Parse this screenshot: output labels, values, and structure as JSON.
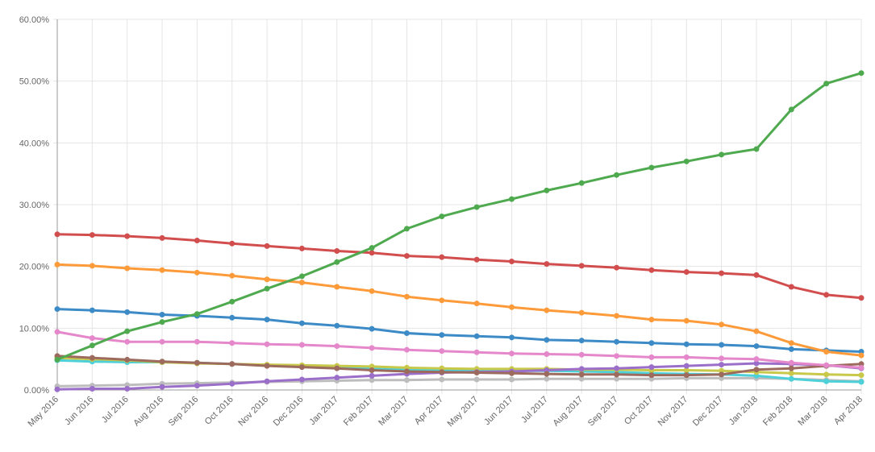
{
  "chart_data": {
    "type": "line",
    "title": "",
    "xlabel": "",
    "ylabel": "",
    "ylim": [
      0,
      60
    ],
    "y_ticks": [
      "0.00%",
      "10.00%",
      "20.00%",
      "30.00%",
      "40.00%",
      "50.00%",
      "60.00%"
    ],
    "grid": true,
    "categories": [
      "May 2016",
      "Jun 2016",
      "Jul 2016",
      "Aug 2016",
      "Sep 2016",
      "Oct 2016",
      "Nov 2016",
      "Dec 2016",
      "Jan 2017",
      "Feb 2017",
      "Mar 2017",
      "Apr 2017",
      "May 2017",
      "Jun 2017",
      "Jul 2017",
      "Aug 2017",
      "Sep 2017",
      "Oct 2017",
      "Nov 2017",
      "Dec 2017",
      "Jan 2018",
      "Feb 2018",
      "Mar 2018",
      "Apr 2018"
    ],
    "series": [
      {
        "color": "#bdbdbd",
        "values": [
          0.6,
          0.7,
          0.8,
          1.0,
          1.1,
          1.2,
          1.3,
          1.4,
          1.5,
          1.6,
          1.6,
          1.7,
          1.7,
          1.7,
          1.8,
          1.8,
          1.8,
          1.8,
          1.9,
          1.9,
          1.9,
          1.8,
          1.6,
          1.4
        ]
      },
      {
        "color": "#4dd0d8",
        "values": [
          4.8,
          4.6,
          4.5,
          4.5,
          4.4,
          4.2,
          4.0,
          3.8,
          3.7,
          3.5,
          3.3,
          3.2,
          3.2,
          3.1,
          3.1,
          3.0,
          2.9,
          2.7,
          2.6,
          2.5,
          2.3,
          1.8,
          1.4,
          1.3
        ]
      },
      {
        "color": "#c8c84a",
        "values": [
          5.2,
          5.0,
          4.8,
          4.5,
          4.3,
          4.2,
          4.1,
          4.0,
          3.9,
          3.8,
          3.6,
          3.5,
          3.4,
          3.4,
          3.4,
          3.3,
          3.3,
          3.2,
          3.2,
          3.1,
          2.9,
          2.7,
          2.5,
          2.4
        ]
      },
      {
        "color": "#9b6fc9",
        "values": [
          0.1,
          0.2,
          0.2,
          0.5,
          0.7,
          1.0,
          1.4,
          1.7,
          2.0,
          2.3,
          2.6,
          2.8,
          2.9,
          3.0,
          3.2,
          3.4,
          3.5,
          3.7,
          3.9,
          4.1,
          4.3,
          4.2,
          4.0,
          3.5
        ]
      },
      {
        "color": "#9c6b5e",
        "values": [
          5.5,
          5.2,
          4.9,
          4.6,
          4.4,
          4.2,
          3.9,
          3.7,
          3.5,
          3.2,
          3.0,
          2.9,
          2.8,
          2.7,
          2.6,
          2.5,
          2.5,
          2.4,
          2.4,
          2.5,
          3.3,
          3.5,
          3.9,
          4.2
        ]
      },
      {
        "color": "#e588cb",
        "values": [
          9.4,
          8.4,
          7.8,
          7.8,
          7.8,
          7.6,
          7.4,
          7.3,
          7.1,
          6.8,
          6.5,
          6.3,
          6.1,
          5.9,
          5.8,
          5.7,
          5.5,
          5.3,
          5.3,
          5.1,
          5.0,
          4.4,
          4.0,
          3.6
        ]
      },
      {
        "color": "#3c8bc6",
        "values": [
          13.1,
          12.9,
          12.6,
          12.2,
          12.0,
          11.7,
          11.4,
          10.8,
          10.4,
          9.9,
          9.2,
          8.9,
          8.7,
          8.5,
          8.1,
          8.0,
          7.8,
          7.6,
          7.4,
          7.3,
          7.1,
          6.6,
          6.4,
          6.2
        ]
      },
      {
        "color": "#fd9b3a",
        "values": [
          20.3,
          20.1,
          19.7,
          19.4,
          19.0,
          18.5,
          17.9,
          17.4,
          16.7,
          16.0,
          15.1,
          14.5,
          14.0,
          13.4,
          12.9,
          12.5,
          12.0,
          11.4,
          11.2,
          10.6,
          9.5,
          7.6,
          6.2,
          5.6
        ]
      },
      {
        "color": "#d24e4e",
        "values": [
          25.2,
          25.1,
          24.9,
          24.6,
          24.2,
          23.7,
          23.3,
          22.9,
          22.5,
          22.2,
          21.7,
          21.5,
          21.1,
          20.8,
          20.4,
          20.1,
          19.8,
          19.4,
          19.1,
          18.9,
          18.6,
          16.7,
          15.4,
          14.9
        ]
      },
      {
        "color": "#4faa4f",
        "values": [
          4.9,
          7.2,
          9.5,
          11.0,
          12.3,
          14.3,
          16.4,
          18.4,
          20.7,
          23.0,
          26.1,
          28.1,
          29.6,
          30.9,
          32.3,
          33.5,
          34.8,
          36.0,
          37.0,
          38.1,
          39.0,
          45.4,
          49.6,
          51.3
        ]
      }
    ]
  }
}
